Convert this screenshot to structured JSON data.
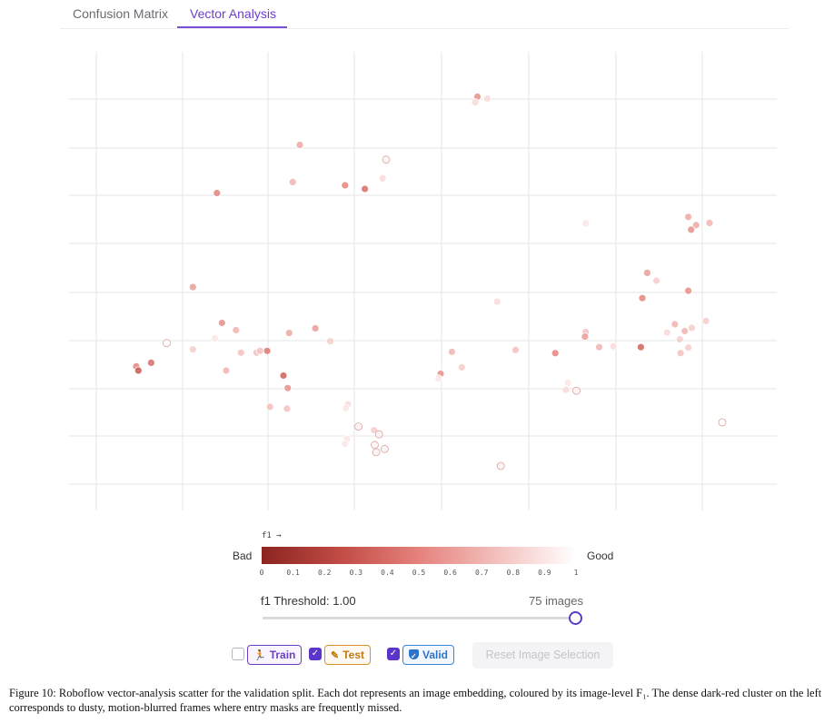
{
  "tabs": [
    {
      "label": "Confusion Matrix",
      "active": false
    },
    {
      "label": "Vector Analysis",
      "active": true
    }
  ],
  "chart_data": {
    "type": "scatter",
    "title": "",
    "xlabel": "",
    "ylabel": "",
    "x_range": [
      0,
      100
    ],
    "y_range": [
      0,
      100
    ],
    "grid": true,
    "color_by": "f1",
    "series": [
      {
        "name": "validation image embeddings",
        "points": [
          {
            "x": 57.7,
            "y": 90.2,
            "f1": 0.55
          },
          {
            "x": 57.4,
            "y": 89.0,
            "f1": 0.85
          },
          {
            "x": 59.1,
            "y": 89.8,
            "f1": 0.85
          },
          {
            "x": 32.6,
            "y": 79.7,
            "f1": 0.65
          },
          {
            "x": 44.8,
            "y": 76.5,
            "f1": 0.95
          },
          {
            "x": 31.6,
            "y": 71.6,
            "f1": 0.7
          },
          {
            "x": 44.3,
            "y": 72.4,
            "f1": 0.85
          },
          {
            "x": 41.8,
            "y": 70.1,
            "f1": 0.4
          },
          {
            "x": 39.0,
            "y": 70.9,
            "f1": 0.5
          },
          {
            "x": 20.9,
            "y": 69.2,
            "f1": 0.5
          },
          {
            "x": 73.0,
            "y": 62.6,
            "f1": 0.9
          },
          {
            "x": 87.5,
            "y": 64.0,
            "f1": 0.65
          },
          {
            "x": 88.6,
            "y": 62.2,
            "f1": 0.65
          },
          {
            "x": 90.5,
            "y": 62.7,
            "f1": 0.7
          },
          {
            "x": 87.9,
            "y": 61.2,
            "f1": 0.55
          },
          {
            "x": 81.7,
            "y": 51.8,
            "f1": 0.6
          },
          {
            "x": 83.0,
            "y": 50.1,
            "f1": 0.8
          },
          {
            "x": 87.5,
            "y": 47.9,
            "f1": 0.55
          },
          {
            "x": 81.0,
            "y": 46.3,
            "f1": 0.5
          },
          {
            "x": 17.5,
            "y": 48.7,
            "f1": 0.6
          },
          {
            "x": 60.5,
            "y": 45.5,
            "f1": 0.85
          },
          {
            "x": 21.6,
            "y": 40.9,
            "f1": 0.55
          },
          {
            "x": 23.6,
            "y": 39.3,
            "f1": 0.7
          },
          {
            "x": 34.8,
            "y": 39.7,
            "f1": 0.6
          },
          {
            "x": 31.1,
            "y": 38.7,
            "f1": 0.65
          },
          {
            "x": 20.6,
            "y": 37.5,
            "f1": 0.9
          },
          {
            "x": 26.5,
            "y": 34.4,
            "f1": 0.75
          },
          {
            "x": 36.9,
            "y": 36.9,
            "f1": 0.8
          },
          {
            "x": 13.8,
            "y": 36.5,
            "f1": 1.0
          },
          {
            "x": 17.5,
            "y": 35.1,
            "f1": 0.8
          },
          {
            "x": 28.0,
            "y": 34.8,
            "f1": 0.45
          },
          {
            "x": 24.3,
            "y": 34.4,
            "f1": 0.75
          },
          {
            "x": 27.0,
            "y": 34.8,
            "f1": 0.75
          },
          {
            "x": 11.6,
            "y": 32.2,
            "f1": 0.4
          },
          {
            "x": 9.5,
            "y": 31.4,
            "f1": 0.5
          },
          {
            "x": 9.8,
            "y": 30.5,
            "f1": 0.3
          },
          {
            "x": 22.2,
            "y": 30.5,
            "f1": 0.7
          },
          {
            "x": 30.3,
            "y": 29.4,
            "f1": 0.35
          },
          {
            "x": 30.9,
            "y": 26.7,
            "f1": 0.55
          },
          {
            "x": 28.4,
            "y": 22.6,
            "f1": 0.75
          },
          {
            "x": 30.8,
            "y": 22.2,
            "f1": 0.75
          },
          {
            "x": 39.4,
            "y": 23.1,
            "f1": 0.85
          },
          {
            "x": 39.1,
            "y": 22.3,
            "f1": 0.9
          },
          {
            "x": 40.9,
            "y": 18.3,
            "f1": 0.95
          },
          {
            "x": 43.1,
            "y": 17.5,
            "f1": 0.8
          },
          {
            "x": 43.8,
            "y": 16.6,
            "f1": 0.95
          },
          {
            "x": 39.3,
            "y": 15.6,
            "f1": 0.9
          },
          {
            "x": 39.0,
            "y": 14.5,
            "f1": 0.9
          },
          {
            "x": 43.2,
            "y": 14.3,
            "f1": 0.95
          },
          {
            "x": 44.6,
            "y": 13.4,
            "f1": 0.95
          },
          {
            "x": 43.4,
            "y": 12.7,
            "f1": 0.95
          },
          {
            "x": 61.0,
            "y": 9.7,
            "f1": 0.95
          },
          {
            "x": 54.1,
            "y": 34.6,
            "f1": 0.7
          },
          {
            "x": 52.5,
            "y": 29.8,
            "f1": 0.55
          },
          {
            "x": 52.2,
            "y": 28.8,
            "f1": 0.9
          },
          {
            "x": 55.5,
            "y": 31.2,
            "f1": 0.8
          },
          {
            "x": 63.1,
            "y": 35.0,
            "f1": 0.75
          },
          {
            "x": 68.7,
            "y": 34.3,
            "f1": 0.5
          },
          {
            "x": 73.0,
            "y": 38.9,
            "f1": 0.75
          },
          {
            "x": 72.9,
            "y": 37.9,
            "f1": 0.6
          },
          {
            "x": 74.9,
            "y": 35.6,
            "f1": 0.7
          },
          {
            "x": 76.9,
            "y": 35.8,
            "f1": 0.85
          },
          {
            "x": 80.8,
            "y": 35.6,
            "f1": 0.35
          },
          {
            "x": 84.5,
            "y": 38.8,
            "f1": 0.85
          },
          {
            "x": 85.6,
            "y": 40.6,
            "f1": 0.7
          },
          {
            "x": 87.0,
            "y": 39.1,
            "f1": 0.7
          },
          {
            "x": 86.3,
            "y": 37.3,
            "f1": 0.8
          },
          {
            "x": 88.0,
            "y": 39.8,
            "f1": 0.8
          },
          {
            "x": 90.0,
            "y": 41.3,
            "f1": 0.8
          },
          {
            "x": 87.5,
            "y": 35.5,
            "f1": 0.8
          },
          {
            "x": 86.4,
            "y": 34.3,
            "f1": 0.75
          },
          {
            "x": 70.5,
            "y": 27.8,
            "f1": 0.9
          },
          {
            "x": 70.2,
            "y": 26.3,
            "f1": 0.85
          },
          {
            "x": 71.7,
            "y": 26.1,
            "f1": 0.95
          },
          {
            "x": 92.3,
            "y": 19.2,
            "f1": 1.0
          }
        ]
      }
    ],
    "colorbar": {
      "label": "f1 →",
      "low_label": "Bad",
      "high_label": "Good",
      "min": 0,
      "max": 1,
      "ticks": [
        "0",
        "0.1",
        "0.2",
        "0.3",
        "0.4",
        "0.5",
        "0.6",
        "0.7",
        "0.8",
        "0.9",
        "1"
      ],
      "colors": [
        "#8b2420",
        "#c24b45",
        "#e5827d",
        "#f3c0bd",
        "#ffffff"
      ]
    }
  },
  "threshold": {
    "label": "f1 Threshold: 1.00",
    "value": 1.0,
    "count_label": "75 images"
  },
  "filters": [
    {
      "label": "Train",
      "checked": false,
      "icon": "runner-icon"
    },
    {
      "label": "Test",
      "checked": true,
      "icon": "pencil-icon"
    },
    {
      "label": "Valid",
      "checked": true,
      "icon": "shield-check-icon"
    }
  ],
  "reset_label": "Reset Image Selection",
  "caption": "Figure 10: Roboflow vector-analysis scatter for the validation split. Each dot represents an image embedding, coloured by its image-level F₁. The dense dark-red cluster on the left corresponds to dusty, motion-blurred frames where entry masks are frequently missed."
}
